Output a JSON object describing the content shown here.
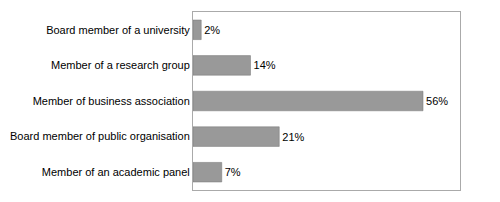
{
  "chart_data": {
    "type": "bar",
    "orientation": "horizontal",
    "categories": [
      "Board member of a university",
      "Member of a research group",
      "Member of business association",
      "Board member of public organisation",
      "Member of an academic panel"
    ],
    "values": [
      2,
      14,
      56,
      21,
      7
    ],
    "value_labels": [
      "2%",
      "14%",
      "56%",
      "21%",
      "7%"
    ],
    "data_labels": true,
    "color": "#999999",
    "xlim": [
      0,
      65
    ],
    "xticks": [],
    "tick_labels": "y",
    "grid": false
  }
}
